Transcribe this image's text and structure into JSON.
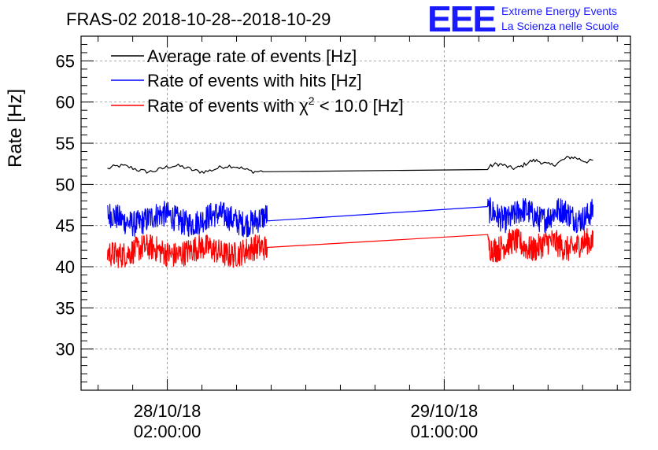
{
  "chart_data": {
    "type": "line",
    "title": "FRAS-02 2018-10-28--2018-10-29",
    "ylabel": "Rate [Hz]",
    "xlabel": "",
    "ylim": [
      25,
      68
    ],
    "yticks": [
      30,
      35,
      40,
      45,
      50,
      55,
      60,
      65
    ],
    "xlim": [
      0,
      1
    ],
    "grid": true,
    "legend_position": "top-left",
    "date_ticks": [
      {
        "x": 0.157,
        "line1": "28/10/18",
        "line2": "02:00:00"
      },
      {
        "x": 0.661,
        "line1": "29/10/18",
        "line2": "01:00:00"
      }
    ],
    "minor_xticks": [
      0.031,
      0.094,
      0.22,
      0.283,
      0.346,
      0.409,
      0.472,
      0.535,
      0.598,
      0.724,
      0.787,
      0.85,
      0.913,
      0.976
    ],
    "series": [
      {
        "name": "Average rate of events [Hz]",
        "color": "#000000",
        "legend_label": "Average rate of events [Hz]",
        "segments": [
          {
            "x_start": 0.048,
            "x_end": 0.331,
            "level": 51.9,
            "amplitude": 0.35,
            "noise": 0.25,
            "points": 80
          },
          {
            "x_start": 0.331,
            "x_end": 0.74,
            "level_start": 51.7,
            "level_end": 51.8,
            "amplitude": 0.0,
            "noise": 0.0,
            "points": 2
          },
          {
            "x_start": 0.74,
            "x_end": 0.932,
            "level_start": 52.0,
            "level_end": 53.2,
            "amplitude": 0.35,
            "noise": 0.25,
            "points": 70
          }
        ]
      },
      {
        "name": "Rate of events with hits [Hz]",
        "color": "#0000ff",
        "legend_label": "Rate of events with hits [Hz]",
        "segments": [
          {
            "x_start": 0.048,
            "x_end": 0.339,
            "level": 45.8,
            "amplitude": 0.6,
            "noise": 1.6,
            "points": 400
          },
          {
            "x_start": 0.339,
            "x_end": 0.74,
            "level_start": 45.3,
            "level_end": 47.3,
            "amplitude": 0.0,
            "noise": 0.0,
            "points": 2
          },
          {
            "x_start": 0.74,
            "x_end": 0.932,
            "level": 46.3,
            "amplitude": 0.6,
            "noise": 1.6,
            "points": 280
          }
        ]
      },
      {
        "name": "Rate of events with chi2 < 10.0 [Hz]",
        "color": "#ff0000",
        "legend_prefix": "Rate of events with ",
        "legend_symbol": "χ",
        "legend_sup": "2",
        "legend_suffix": " < 10.0 [Hz]",
        "segments": [
          {
            "x_start": 0.048,
            "x_end": 0.339,
            "level": 41.9,
            "amplitude": 0.5,
            "noise": 1.6,
            "points": 400
          },
          {
            "x_start": 0.339,
            "x_end": 0.74,
            "level_start": 42.1,
            "level_end": 43.9,
            "amplitude": 0.0,
            "noise": 0.0,
            "points": 2
          },
          {
            "x_start": 0.74,
            "x_end": 0.932,
            "level": 42.6,
            "amplitude": 0.5,
            "noise": 1.6,
            "points": 280
          }
        ]
      }
    ]
  },
  "logo": {
    "mark": "EEE",
    "line1": "Extreme Energy Events",
    "line2": "La Scienza nelle Scuole",
    "color": "#1a1aff"
  }
}
